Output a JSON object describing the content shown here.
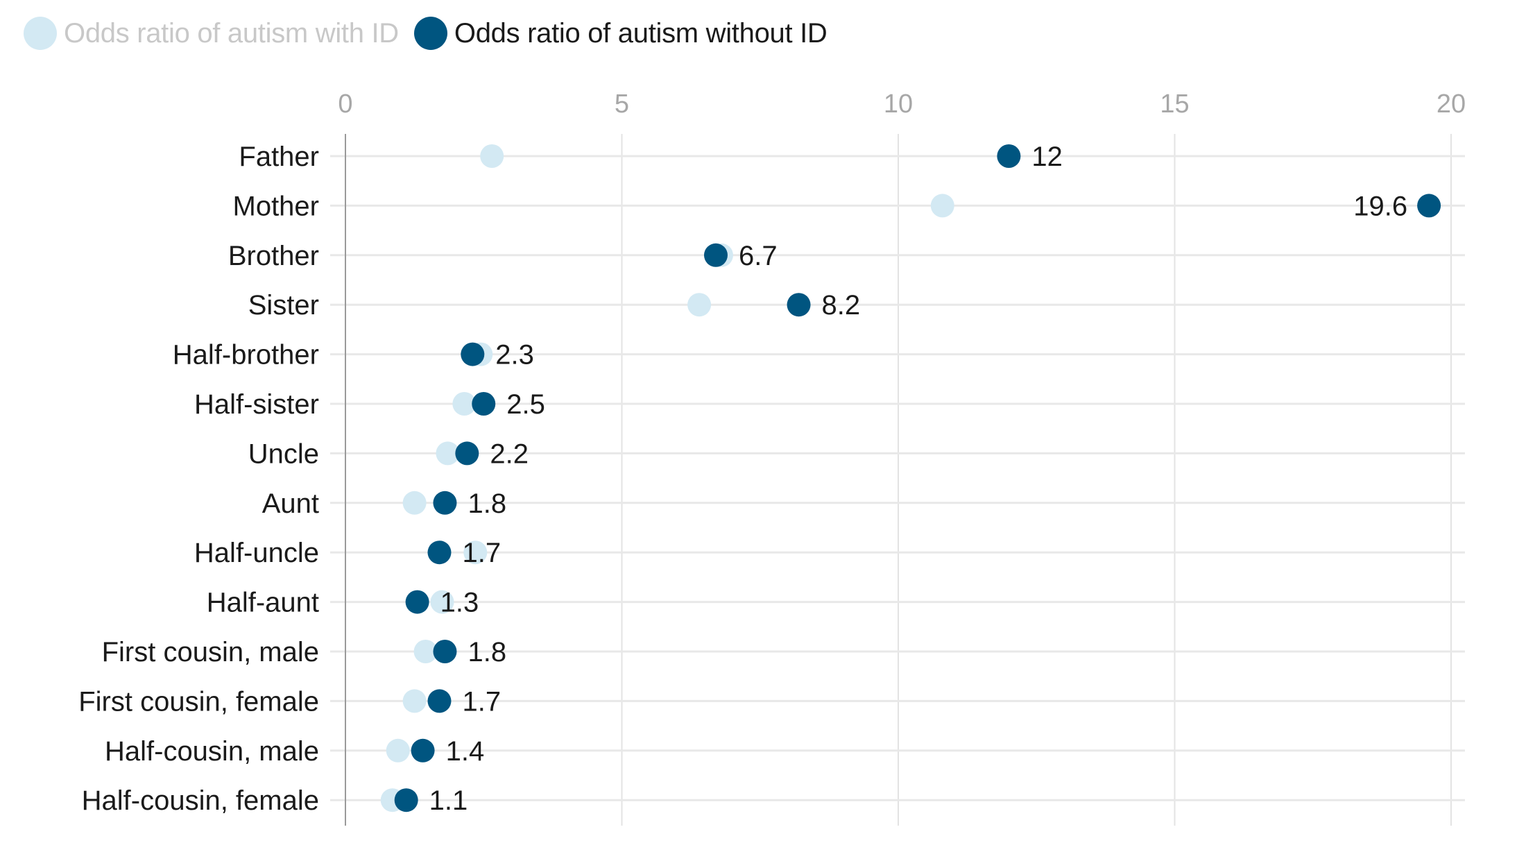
{
  "chart_data": {
    "type": "scatter",
    "subtype": "dot-plot",
    "title": "",
    "xlabel": "",
    "ylabel": "",
    "xlim": [
      0,
      20
    ],
    "x_ticks": [
      0,
      5,
      10,
      15,
      20
    ],
    "grid": true,
    "legend_position": "top-left",
    "categories": [
      "Father",
      "Mother",
      "Brother",
      "Sister",
      "Half-brother",
      "Half-sister",
      "Uncle",
      "Aunt",
      "Half-uncle",
      "Half-aunt",
      "First cousin, male",
      "First cousin, female",
      "Half-cousin, male",
      "Half-cousin, female"
    ],
    "series": [
      {
        "name": "Odds ratio of autism with ID",
        "color": "#d3e9f3",
        "legend_text_color": "#c8c8c8",
        "values": [
          2.65,
          10.8,
          6.8,
          6.4,
          2.45,
          2.15,
          1.85,
          1.25,
          2.35,
          1.75,
          1.45,
          1.25,
          0.95,
          0.85
        ],
        "labels_shown": false
      },
      {
        "name": "Odds ratio of autism without ID",
        "color": "#005580",
        "legend_text_color": "#1a1a1a",
        "values": [
          12,
          19.6,
          6.7,
          8.2,
          2.3,
          2.5,
          2.2,
          1.8,
          1.7,
          1.3,
          1.8,
          1.7,
          1.4,
          1.1
        ],
        "value_labels": [
          "12",
          "19.6",
          "6.7",
          "8.2",
          "2.3",
          "2.5",
          "2.2",
          "1.8",
          "1.7",
          "1.3",
          "1.8",
          "1.7",
          "1.4",
          "1.1"
        ],
        "labels_shown": true
      }
    ]
  },
  "legend": {
    "items": [
      {
        "label": "Odds ratio of autism with ID",
        "color": "#d3e9f3",
        "text_color": "#c8c8c8"
      },
      {
        "label": "Odds ratio of autism without ID",
        "color": "#005580",
        "text_color": "#1a1a1a"
      }
    ]
  },
  "colors": {
    "gridline": "#e3e3e3",
    "row_line": "#e8e8e8",
    "axis_line": "#9a9a9a",
    "tick_label": "#a7a7a7"
  }
}
